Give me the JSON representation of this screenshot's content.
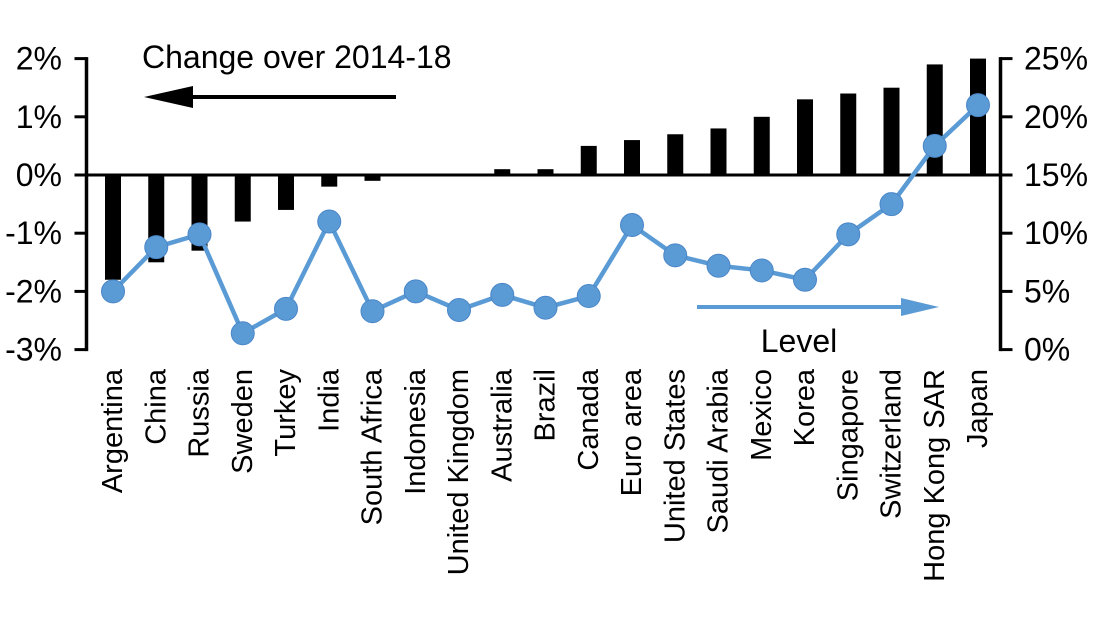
{
  "chart_data": {
    "type": "bar",
    "subtype": "bar+line dual axis combo",
    "title": "",
    "categories": [
      "Argentina",
      "China",
      "Russia",
      "Sweden",
      "Turkey",
      "India",
      "South Africa",
      "Indonesia",
      "United Kingdom",
      "Australia",
      "Brazil",
      "Canada",
      "Euro area",
      "United States",
      "Saudi Arabia",
      "Mexico",
      "Korea",
      "Singapore",
      "Switzerland",
      "Hong Kong SAR",
      "Japan"
    ],
    "series": [
      {
        "name": "Change over 2014-18",
        "chart_type": "bar",
        "axis": "left",
        "unit": "%",
        "values": [
          -1.8,
          -1.5,
          -1.3,
          -0.8,
          -0.6,
          -0.2,
          -0.1,
          0,
          0,
          0.1,
          0.1,
          0.5,
          0.6,
          0.7,
          0.8,
          1.0,
          1.3,
          1.4,
          1.5,
          1.9,
          2.0
        ]
      },
      {
        "name": "Level",
        "chart_type": "line",
        "axis": "right",
        "unit": "%",
        "values": [
          5.0,
          8.8,
          9.9,
          1.4,
          3.5,
          11.0,
          3.3,
          5.0,
          3.4,
          4.7,
          3.6,
          4.6,
          10.7,
          8.1,
          7.2,
          6.8,
          6.0,
          9.9,
          12.5,
          17.5,
          21.0
        ]
      }
    ],
    "left_axis": {
      "ticks": [
        2,
        1,
        0,
        -1,
        -2,
        -3
      ],
      "tick_labels": [
        "2%",
        "1%",
        "0%",
        "-1%",
        "-2%",
        "-3%"
      ],
      "range": [
        -3,
        2
      ]
    },
    "right_axis": {
      "ticks": [
        25,
        20,
        15,
        10,
        5,
        0
      ],
      "tick_labels": [
        "25%",
        "20%",
        "15%",
        "10%",
        "5%",
        "0%"
      ],
      "range": [
        0,
        25
      ]
    },
    "annotations": [
      {
        "text": "Change over 2014-18",
        "arrow": "left",
        "color": "#000000"
      },
      {
        "text": "Level",
        "arrow": "right",
        "color": "#5B9BD5"
      }
    ],
    "grid": false,
    "legend_position": "none (arrow annotations inside plot)",
    "colors": {
      "bar": "#000000",
      "line": "#5B9BD5",
      "marker": "#5B9BD5",
      "text": "#000000",
      "background": "#FFFFFF"
    }
  }
}
